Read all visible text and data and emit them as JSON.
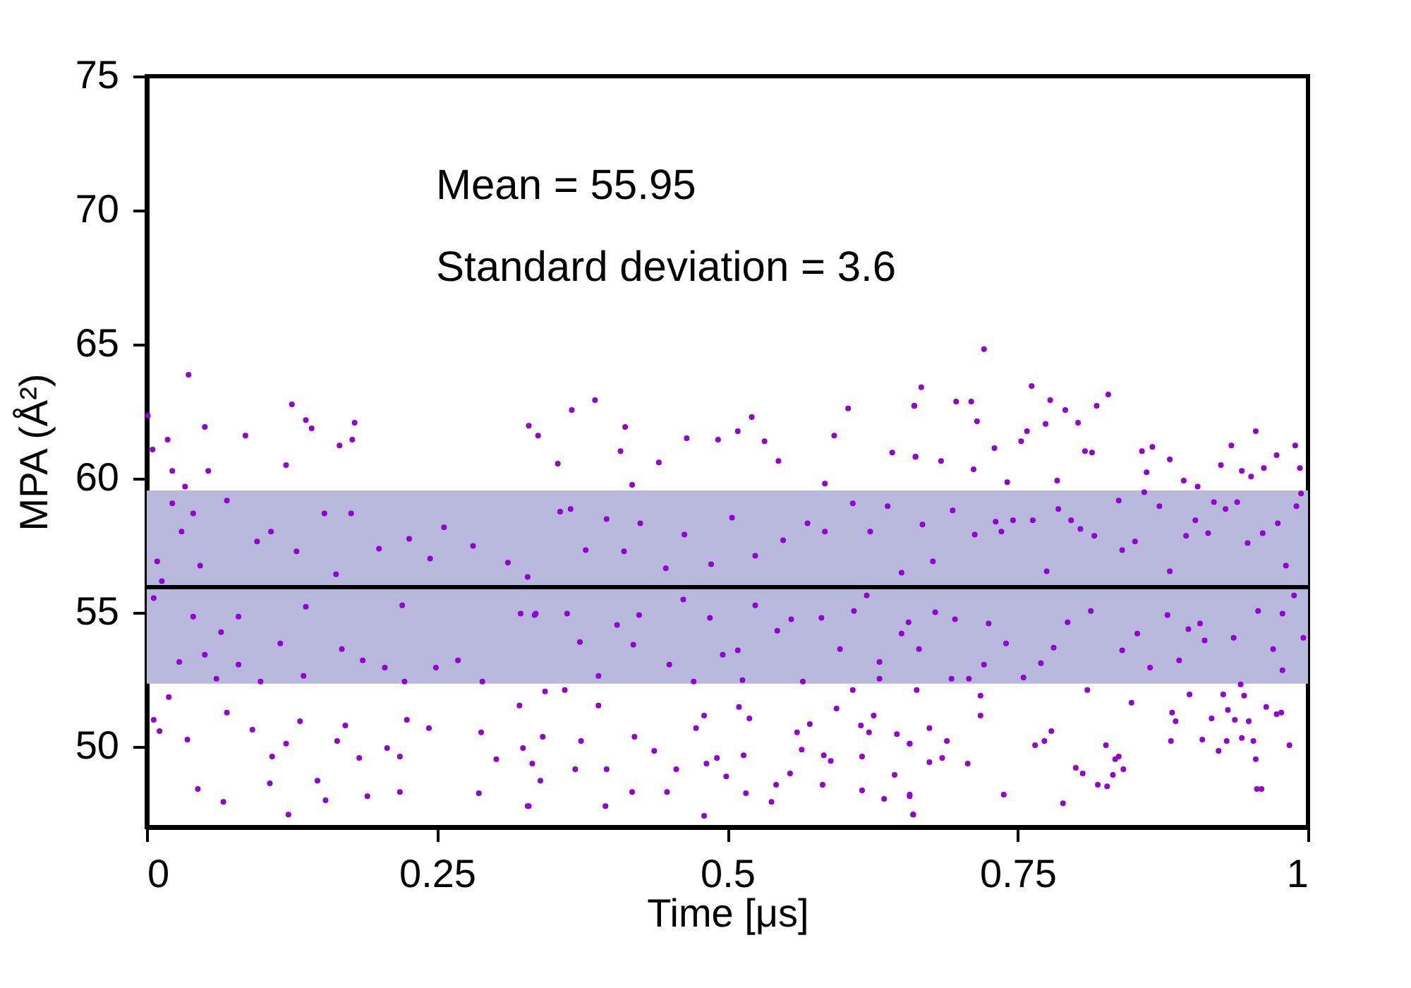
{
  "chart_data": {
    "type": "scatter",
    "xlabel": "Time [μs]",
    "ylabel": "MPA (Å²)",
    "xlim": [
      0,
      1
    ],
    "xticks": [
      0,
      0.25,
      0.5,
      0.75,
      1
    ],
    "ylim": [
      47,
      75
    ],
    "yticks": [
      50,
      55,
      60,
      65,
      70,
      75
    ],
    "grid": false,
    "marker": "circle",
    "color": "#9400d3",
    "annotations": [
      "Mean = 55.95",
      "Standard deviation = 3.6"
    ],
    "ref_lines": [
      {
        "axis": "y",
        "value": 55.95,
        "color": "#000000"
      }
    ],
    "bands": [
      {
        "axis": "y",
        "from": 52.35,
        "to": 59.55,
        "color": "#b8b8dc"
      }
    ],
    "x": [
      0.036,
      0.001,
      0.005,
      0.018,
      0.05,
      0.125,
      0.137,
      0.142,
      0.085,
      0.179,
      0.177,
      0.166,
      0.12,
      0.022,
      0.053,
      0.033,
      0.022,
      0.04,
      0.03,
      0.009,
      0.013,
      0.046,
      0.069,
      0.095,
      0.107,
      0.129,
      0.153,
      0.163,
      0.176,
      0.2,
      0.226,
      0.244,
      0.256,
      0.281,
      0.311,
      0.328,
      0.006,
      0.04,
      0.064,
      0.079,
      0.05,
      0.028,
      0.06,
      0.079,
      0.098,
      0.115,
      0.135,
      0.137,
      0.168,
      0.186,
      0.205,
      0.22,
      0.222,
      0.249,
      0.268,
      0.289,
      0.322,
      0.335,
      0.019,
      0.006,
      0.011,
      0.035,
      0.044,
      0.066,
      0.069,
      0.091,
      0.108,
      0.106,
      0.122,
      0.12,
      0.132,
      0.147,
      0.154,
      0.164,
      0.171,
      0.183,
      0.19,
      0.207,
      0.218,
      0.218,
      0.224,
      0.243,
      0.286,
      0.288,
      0.301,
      0.328,
      0.324,
      0.321,
      0.386,
      0.366,
      0.329,
      0.337,
      0.412,
      0.408,
      0.465,
      0.492,
      0.509,
      0.521,
      0.532,
      0.544,
      0.604,
      0.592,
      0.642,
      0.661,
      0.662,
      0.354,
      0.441,
      0.418,
      0.584,
      0.356,
      0.365,
      0.378,
      0.396,
      0.411,
      0.425,
      0.447,
      0.463,
      0.486,
      0.504,
      0.524,
      0.548,
      0.569,
      0.584,
      0.608,
      0.623,
      0.638,
      0.65,
      0.334,
      0.362,
      0.373,
      0.389,
      0.405,
      0.419,
      0.424,
      0.45,
      0.462,
      0.471,
      0.485,
      0.496,
      0.509,
      0.513,
      0.524,
      0.543,
      0.555,
      0.565,
      0.581,
      0.597,
      0.609,
      0.62,
      0.631,
      0.631,
      0.65,
      0.343,
      0.36,
      0.341,
      0.332,
      0.339,
      0.369,
      0.329,
      0.374,
      0.389,
      0.396,
      0.395,
      0.42,
      0.418,
      0.437,
      0.448,
      0.456,
      0.473,
      0.48,
      0.48,
      0.482,
      0.491,
      0.499,
      0.51,
      0.514,
      0.519,
      0.516,
      0.538,
      0.542,
      0.554,
      0.56,
      0.564,
      0.571,
      0.583,
      0.589,
      0.582,
      0.594,
      0.608,
      0.615,
      0.616,
      0.616,
      0.622,
      0.626,
      0.635,
      0.646,
      0.644,
      0.657,
      0.657,
      0.66,
      0.721,
      0.667,
      0.661,
      0.697,
      0.71,
      0.715,
      0.762,
      0.778,
      0.791,
      0.828,
      0.818,
      0.802,
      0.774,
      0.753,
      0.73,
      0.662,
      0.684,
      0.712,
      0.741,
      0.758,
      0.808,
      0.814,
      0.784,
      0.857,
      0.866,
      0.881,
      0.861,
      0.893,
      0.905,
      0.925,
      0.934,
      0.955,
      0.943,
      0.962,
      0.973,
      0.989,
      0.993,
      0.951,
      0.668,
      0.694,
      0.677,
      0.713,
      0.731,
      0.736,
      0.746,
      0.763,
      0.775,
      0.785,
      0.796,
      0.804,
      0.816,
      0.837,
      0.84,
      0.851,
      0.859,
      0.872,
      0.881,
      0.895,
      0.903,
      0.914,
      0.919,
      0.929,
      0.939,
      0.948,
      0.961,
      0.974,
      0.981,
      0.99,
      0.994,
      0.656,
      0.679,
      0.665,
      0.693,
      0.696,
      0.708,
      0.721,
      0.725,
      0.74,
      0.755,
      0.77,
      0.781,
      0.793,
      0.813,
      0.84,
      0.853,
      0.864,
      0.879,
      0.889,
      0.897,
      0.907,
      0.911,
      0.936,
      0.942,
      0.957,
      0.97,
      0.978,
      0.978,
      0.988,
      0.996,
      0.663,
      0.674,
      0.657,
      0.674,
      0.657,
      0.66,
      0.685,
      0.689,
      0.707,
      0.718,
      0.718,
      0.738,
      0.765,
      0.773,
      0.779,
      0.789,
      0.8,
      0.806,
      0.81,
      0.819,
      0.827,
      0.826,
      0.832,
      0.834,
      0.837,
      0.841,
      0.848,
      0.882,
      0.883,
      0.886,
      0.898,
      0.909,
      0.917,
      0.923,
      0.927,
      0.93,
      0.931,
      0.937,
      0.943,
      0.945,
      0.949,
      0.953,
      0.955,
      0.956,
      0.96,
      0.964,
      0.973,
      0.977,
      0.984
    ],
    "values": [
      63.87,
      62.34,
      61.08,
      61.45,
      61.92,
      62.76,
      62.18,
      61.87,
      61.6,
      62.08,
      61.45,
      61.23,
      60.5,
      60.28,
      60.28,
      59.7,
      59.07,
      58.7,
      58.02,
      56.91,
      56.17,
      56.75,
      59.18,
      57.65,
      58.02,
      57.28,
      58.7,
      56.43,
      58.7,
      57.38,
      57.75,
      57.01,
      58.18,
      57.49,
      56.86,
      56.33,
      55.54,
      54.85,
      54.27,
      54.85,
      53.43,
      53.16,
      52.53,
      53.06,
      52.43,
      53.85,
      52.64,
      55.22,
      53.64,
      53.22,
      52.95,
      55.27,
      52.43,
      52.95,
      53.22,
      52.43,
      54.96,
      54.96,
      51.85,
      51.0,
      50.58,
      50.26,
      48.42,
      47.94,
      51.27,
      50.63,
      49.63,
      48.63,
      47.47,
      50.11,
      50.95,
      48.73,
      48.0,
      50.21,
      50.79,
      49.58,
      48.15,
      49.95,
      48.31,
      49.63,
      51.0,
      50.69,
      48.26,
      50.53,
      49.53,
      47.78,
      49.95,
      51.53,
      62.92,
      62.55,
      61.97,
      61.6,
      61.92,
      61.02,
      61.5,
      61.45,
      61.76,
      62.29,
      61.39,
      60.65,
      62.61,
      61.6,
      60.97,
      62.71,
      60.81,
      60.55,
      60.6,
      59.76,
      59.81,
      58.76,
      58.86,
      57.33,
      58.49,
      57.28,
      58.33,
      56.65,
      57.91,
      56.8,
      58.54,
      57.12,
      57.7,
      58.33,
      58.02,
      59.07,
      58.02,
      58.97,
      56.49,
      54.91,
      54.96,
      53.9,
      52.64,
      54.54,
      53.8,
      54.91,
      53.06,
      55.49,
      52.43,
      54.8,
      53.43,
      53.59,
      52.48,
      55.27,
      54.32,
      54.75,
      52.43,
      54.8,
      53.64,
      55.06,
      55.64,
      53.16,
      52.53,
      54.22,
      52.06,
      52.11,
      50.37,
      49.37,
      48.73,
      49.16,
      47.78,
      50.21,
      51.53,
      49.16,
      47.78,
      50.37,
      48.31,
      49.84,
      48.31,
      49.16,
      50.69,
      51.16,
      47.42,
      49.37,
      49.58,
      48.89,
      51.48,
      49.68,
      51.05,
      48.26,
      47.94,
      48.58,
      49.0,
      50.53,
      49.89,
      50.84,
      49.68,
      49.47,
      48.58,
      51.42,
      52.11,
      50.79,
      49.63,
      48.37,
      50.53,
      51.16,
      48.05,
      50.47,
      48.95,
      50.11,
      48.21,
      47.47,
      64.82,
      63.4,
      62.71,
      62.87,
      62.87,
      62.13,
      63.45,
      62.92,
      62.55,
      63.13,
      62.71,
      62.08,
      62.03,
      61.39,
      61.13,
      60.81,
      60.65,
      60.34,
      59.86,
      61.76,
      61.02,
      60.97,
      59.92,
      61.02,
      61.18,
      60.71,
      60.23,
      59.92,
      59.7,
      60.5,
      61.23,
      61.76,
      60.28,
      60.39,
      60.87,
      61.23,
      60.39,
      60.07,
      58.28,
      58.81,
      56.91,
      57.91,
      58.39,
      58.02,
      58.44,
      58.44,
      56.54,
      58.86,
      58.44,
      58.12,
      57.86,
      59.18,
      57.33,
      57.65,
      59.49,
      58.97,
      56.54,
      57.86,
      58.44,
      57.96,
      59.12,
      58.86,
      59.12,
      57.59,
      57.96,
      58.33,
      56.75,
      58.97,
      59.44,
      54.64,
      55.01,
      53.64,
      52.53,
      54.75,
      52.53,
      53.06,
      54.59,
      53.85,
      52.58,
      53.11,
      53.69,
      54.64,
      55.06,
      53.59,
      54.22,
      52.95,
      54.91,
      53.22,
      54.38,
      54.59,
      53.96,
      54.06,
      52.32,
      55.06,
      53.64,
      52.85,
      54.96,
      55.64,
      54.06,
      52.11,
      50.69,
      50.11,
      49.42,
      48.15,
      47.47,
      49.58,
      50.21,
      49.37,
      51.9,
      51.16,
      48.21,
      50.05,
      50.21,
      50.58,
      47.89,
      49.21,
      49.0,
      52.11,
      48.58,
      48.52,
      50.05,
      48.95,
      49.53,
      49.63,
      49.16,
      51.64,
      50.21,
      51.27,
      50.95,
      51.95,
      50.26,
      51.05,
      49.84,
      51.95,
      50.21,
      51.37,
      51.0,
      50.32,
      51.9,
      50.95,
      50.21,
      49.53,
      48.42,
      48.42,
      51.48,
      51.21,
      51.27,
      50.05
    ]
  }
}
